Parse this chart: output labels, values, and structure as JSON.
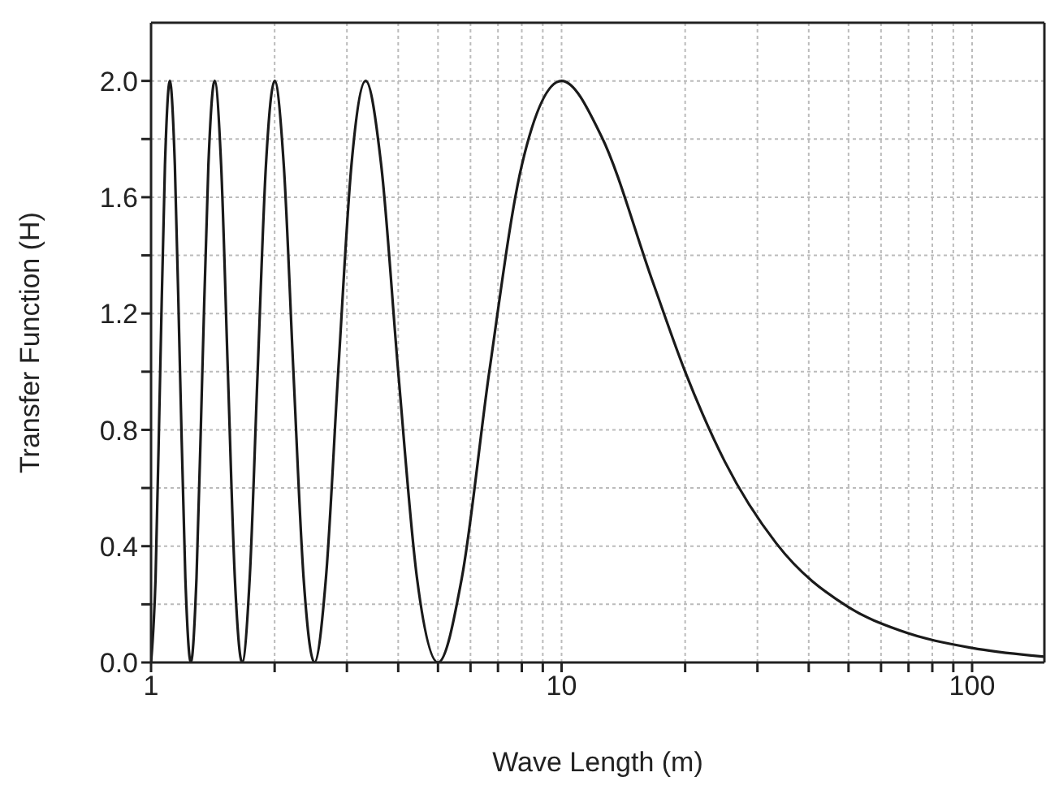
{
  "chart_data": {
    "type": "line",
    "xlabel": "Wave Length (m)",
    "ylabel": "Transfer Function (H)",
    "x": [
      1,
      1.0256,
      1.0526,
      1.0811,
      1.1111,
      1.1429,
      1.1765,
      1.2121,
      1.25,
      1.2903,
      1.3333,
      1.3793,
      1.4286,
      1.4815,
      1.5385,
      1.6,
      1.6667,
      1.7391,
      1.8182,
      1.9048,
      2,
      2.1053,
      2.2222,
      2.3529,
      2.5,
      2.6667,
      2.8571,
      3.0769,
      3.3333,
      3.6364,
      4,
      4.4444,
      5,
      5.714,
      6.667,
      8,
      10,
      12.5,
      16.667,
      20,
      25,
      33.33,
      50,
      66.67,
      100,
      150
    ],
    "series": [
      {
        "color": "#1a1a1a",
        "values": [
          0,
          0.29,
          1,
          1.71,
          2,
          1.71,
          1,
          0.29,
          0,
          0.29,
          1,
          1.71,
          2,
          1.71,
          1,
          0.29,
          0,
          0.29,
          1,
          1.71,
          2,
          1.71,
          1,
          0.29,
          0,
          0.29,
          1,
          1.71,
          2,
          1.71,
          1,
          0.29,
          0,
          0.29,
          1,
          1.71,
          2,
          1.81,
          1.31,
          1,
          0.69,
          0.41,
          0.19,
          0.11,
          0.05,
          0.02
        ]
      }
    ],
    "log": "x",
    "xlim": [
      1,
      150
    ],
    "xticks": [
      1,
      {
        "value": 2,
        "label": null
      },
      {
        "value": 3,
        "label": null
      },
      {
        "value": 4,
        "label": null
      },
      {
        "value": 5,
        "label": null
      },
      {
        "value": 6,
        "label": null
      },
      {
        "value": 7,
        "label": null
      },
      {
        "value": 8,
        "label": null
      },
      {
        "value": 9,
        "label": null
      },
      10,
      {
        "value": 20,
        "label": null
      },
      {
        "value": 30,
        "label": null
      },
      {
        "value": 40,
        "label": null
      },
      {
        "value": 50,
        "label": null
      },
      {
        "value": 60,
        "label": null
      },
      {
        "value": 70,
        "label": null
      },
      {
        "value": 80,
        "label": null
      },
      {
        "value": 90,
        "label": null
      },
      100
    ],
    "ylim": [
      0,
      2.2
    ],
    "yticks": [
      {
        "value": 0,
        "label": "0.0"
      },
      {
        "value": 0.2,
        "label": null
      },
      {
        "value": 0.4,
        "label": "0.4"
      },
      {
        "value": 0.6,
        "label": null
      },
      {
        "value": 0.8,
        "label": "0.8"
      },
      {
        "value": 1,
        "label": null
      },
      {
        "value": 1.2,
        "label": "1.2"
      },
      {
        "value": 1.4,
        "label": null
      },
      {
        "value": 1.6,
        "label": "1.6"
      },
      {
        "value": 1.8,
        "label": null
      },
      {
        "value": 2,
        "label": "2.0"
      }
    ],
    "grid": true,
    "legend": false,
    "marker": "none",
    "line_style": "solid"
  }
}
